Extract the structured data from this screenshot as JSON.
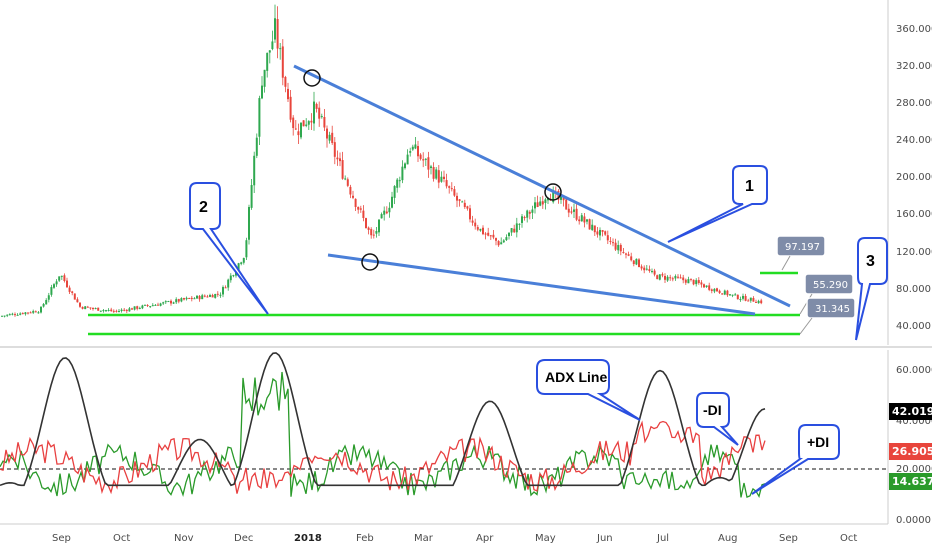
{
  "chart_data": [
    {
      "type": "candlestick",
      "title": "",
      "ylim": [
        20,
        380
      ],
      "y_ticks": [
        "360.000",
        "320.000",
        "280.000",
        "240.000",
        "200.000",
        "160.000",
        "120.000",
        "80.000",
        "40.000"
      ],
      "x_ticks": [
        "Sep",
        "Oct",
        "Nov",
        "Dec",
        "2018",
        "Feb",
        "Mar",
        "Apr",
        "May",
        "Jun",
        "Jul",
        "Aug",
        "Sep",
        "Oct"
      ],
      "price_path": [
        {
          "date": "Aug",
          "value": 42
        },
        {
          "date": "Sep",
          "value": 48
        },
        {
          "date": "Sep",
          "value": 88
        },
        {
          "date": "Sep",
          "value": 52
        },
        {
          "date": "Oct",
          "value": 47
        },
        {
          "date": "Nov",
          "value": 58
        },
        {
          "date": "Dec",
          "value": 66
        },
        {
          "date": "Dec",
          "value": 110
        },
        {
          "date": "Dec",
          "value": 300
        },
        {
          "date": "Dec",
          "value": 350
        },
        {
          "date": "2018",
          "value": 240
        },
        {
          "date": "2018",
          "value": 265
        },
        {
          "date": "Feb",
          "value": 125
        },
        {
          "date": "Feb",
          "value": 165
        },
        {
          "date": "Mar",
          "value": 225
        },
        {
          "date": "Mar",
          "value": 190
        },
        {
          "date": "Apr",
          "value": 135
        },
        {
          "date": "Apr",
          "value": 120
        },
        {
          "date": "May",
          "value": 175
        },
        {
          "date": "May",
          "value": 170
        },
        {
          "date": "Jun",
          "value": 130
        },
        {
          "date": "Jun",
          "value": 105
        },
        {
          "date": "Jul",
          "value": 85
        },
        {
          "date": "Jul",
          "value": 80
        },
        {
          "date": "Aug",
          "value": 63
        },
        {
          "date": "Aug",
          "value": 57
        }
      ],
      "trendlines": [
        {
          "label": "1",
          "from": {
            "date": "Dec",
            "value": 320
          },
          "to": {
            "date": "Aug",
            "value": 60
          },
          "color": "#4a7fd8"
        },
        {
          "label": "",
          "from": {
            "date": "Feb",
            "value": 118
          },
          "to": {
            "date": "Aug",
            "value": 55
          },
          "color": "#4a7fd8"
        }
      ],
      "support_lines": [
        {
          "value": 55.29,
          "color": "#22dd22"
        },
        {
          "value": 31.345,
          "color": "#22dd22"
        },
        {
          "value": 97.197,
          "color": "#22dd22"
        }
      ],
      "annotations": [
        {
          "text": "1"
        },
        {
          "text": "2"
        },
        {
          "text": "3"
        },
        {
          "text": "97.197"
        },
        {
          "text": "55.290"
        },
        {
          "text": "31.345"
        }
      ]
    },
    {
      "type": "line",
      "ylim": [
        0,
        70
      ],
      "y_ticks": [
        "60.0000",
        "40.0000",
        "20.0000",
        "0.0000"
      ],
      "series": [
        {
          "name": "ADX Line",
          "color": "#333333",
          "last": 42.0197
        },
        {
          "name": "-DI",
          "color": "#e84040",
          "last": 26.9056
        },
        {
          "name": "+DI",
          "color": "#2a9a2a",
          "last": 14.6374
        }
      ],
      "reference_level": 20,
      "annotations": [
        {
          "text": "ADX Line"
        },
        {
          "text": "-DI"
        },
        {
          "text": "+DI"
        }
      ]
    }
  ],
  "price_axis": {
    "labels": [
      "360.000",
      "320.000",
      "280.000",
      "240.000",
      "200.000",
      "160.000",
      "120.000",
      "80.000",
      "40.000"
    ]
  },
  "adx_axis": {
    "labels": [
      "60.0000",
      "40.0000",
      "20.0000",
      "0.0000"
    ],
    "badges": {
      "adx": "42.0197",
      "minus_di": "26.9056",
      "plus_di": "14.6374"
    }
  },
  "x_axis": {
    "labels": [
      "Sep",
      "Oct",
      "Nov",
      "Dec",
      "2018",
      "Feb",
      "Mar",
      "Apr",
      "May",
      "Jun",
      "Jul",
      "Aug",
      "Sep",
      "Oct"
    ]
  },
  "callouts": {
    "c1": "1",
    "c2": "2",
    "c3": "3",
    "adx": "ADX Line",
    "minus_di": "-DI",
    "plus_di": "+DI"
  },
  "level_tags": {
    "t1": "97.197",
    "t2": "55.290",
    "t3": "31.345"
  },
  "colors": {
    "up": "#2fa84f",
    "down": "#e8453c",
    "trend": "#4a7fd8",
    "support": "#22dd22",
    "adx": "#333333",
    "minus_di": "#e84040",
    "plus_di": "#2a9a2a"
  }
}
